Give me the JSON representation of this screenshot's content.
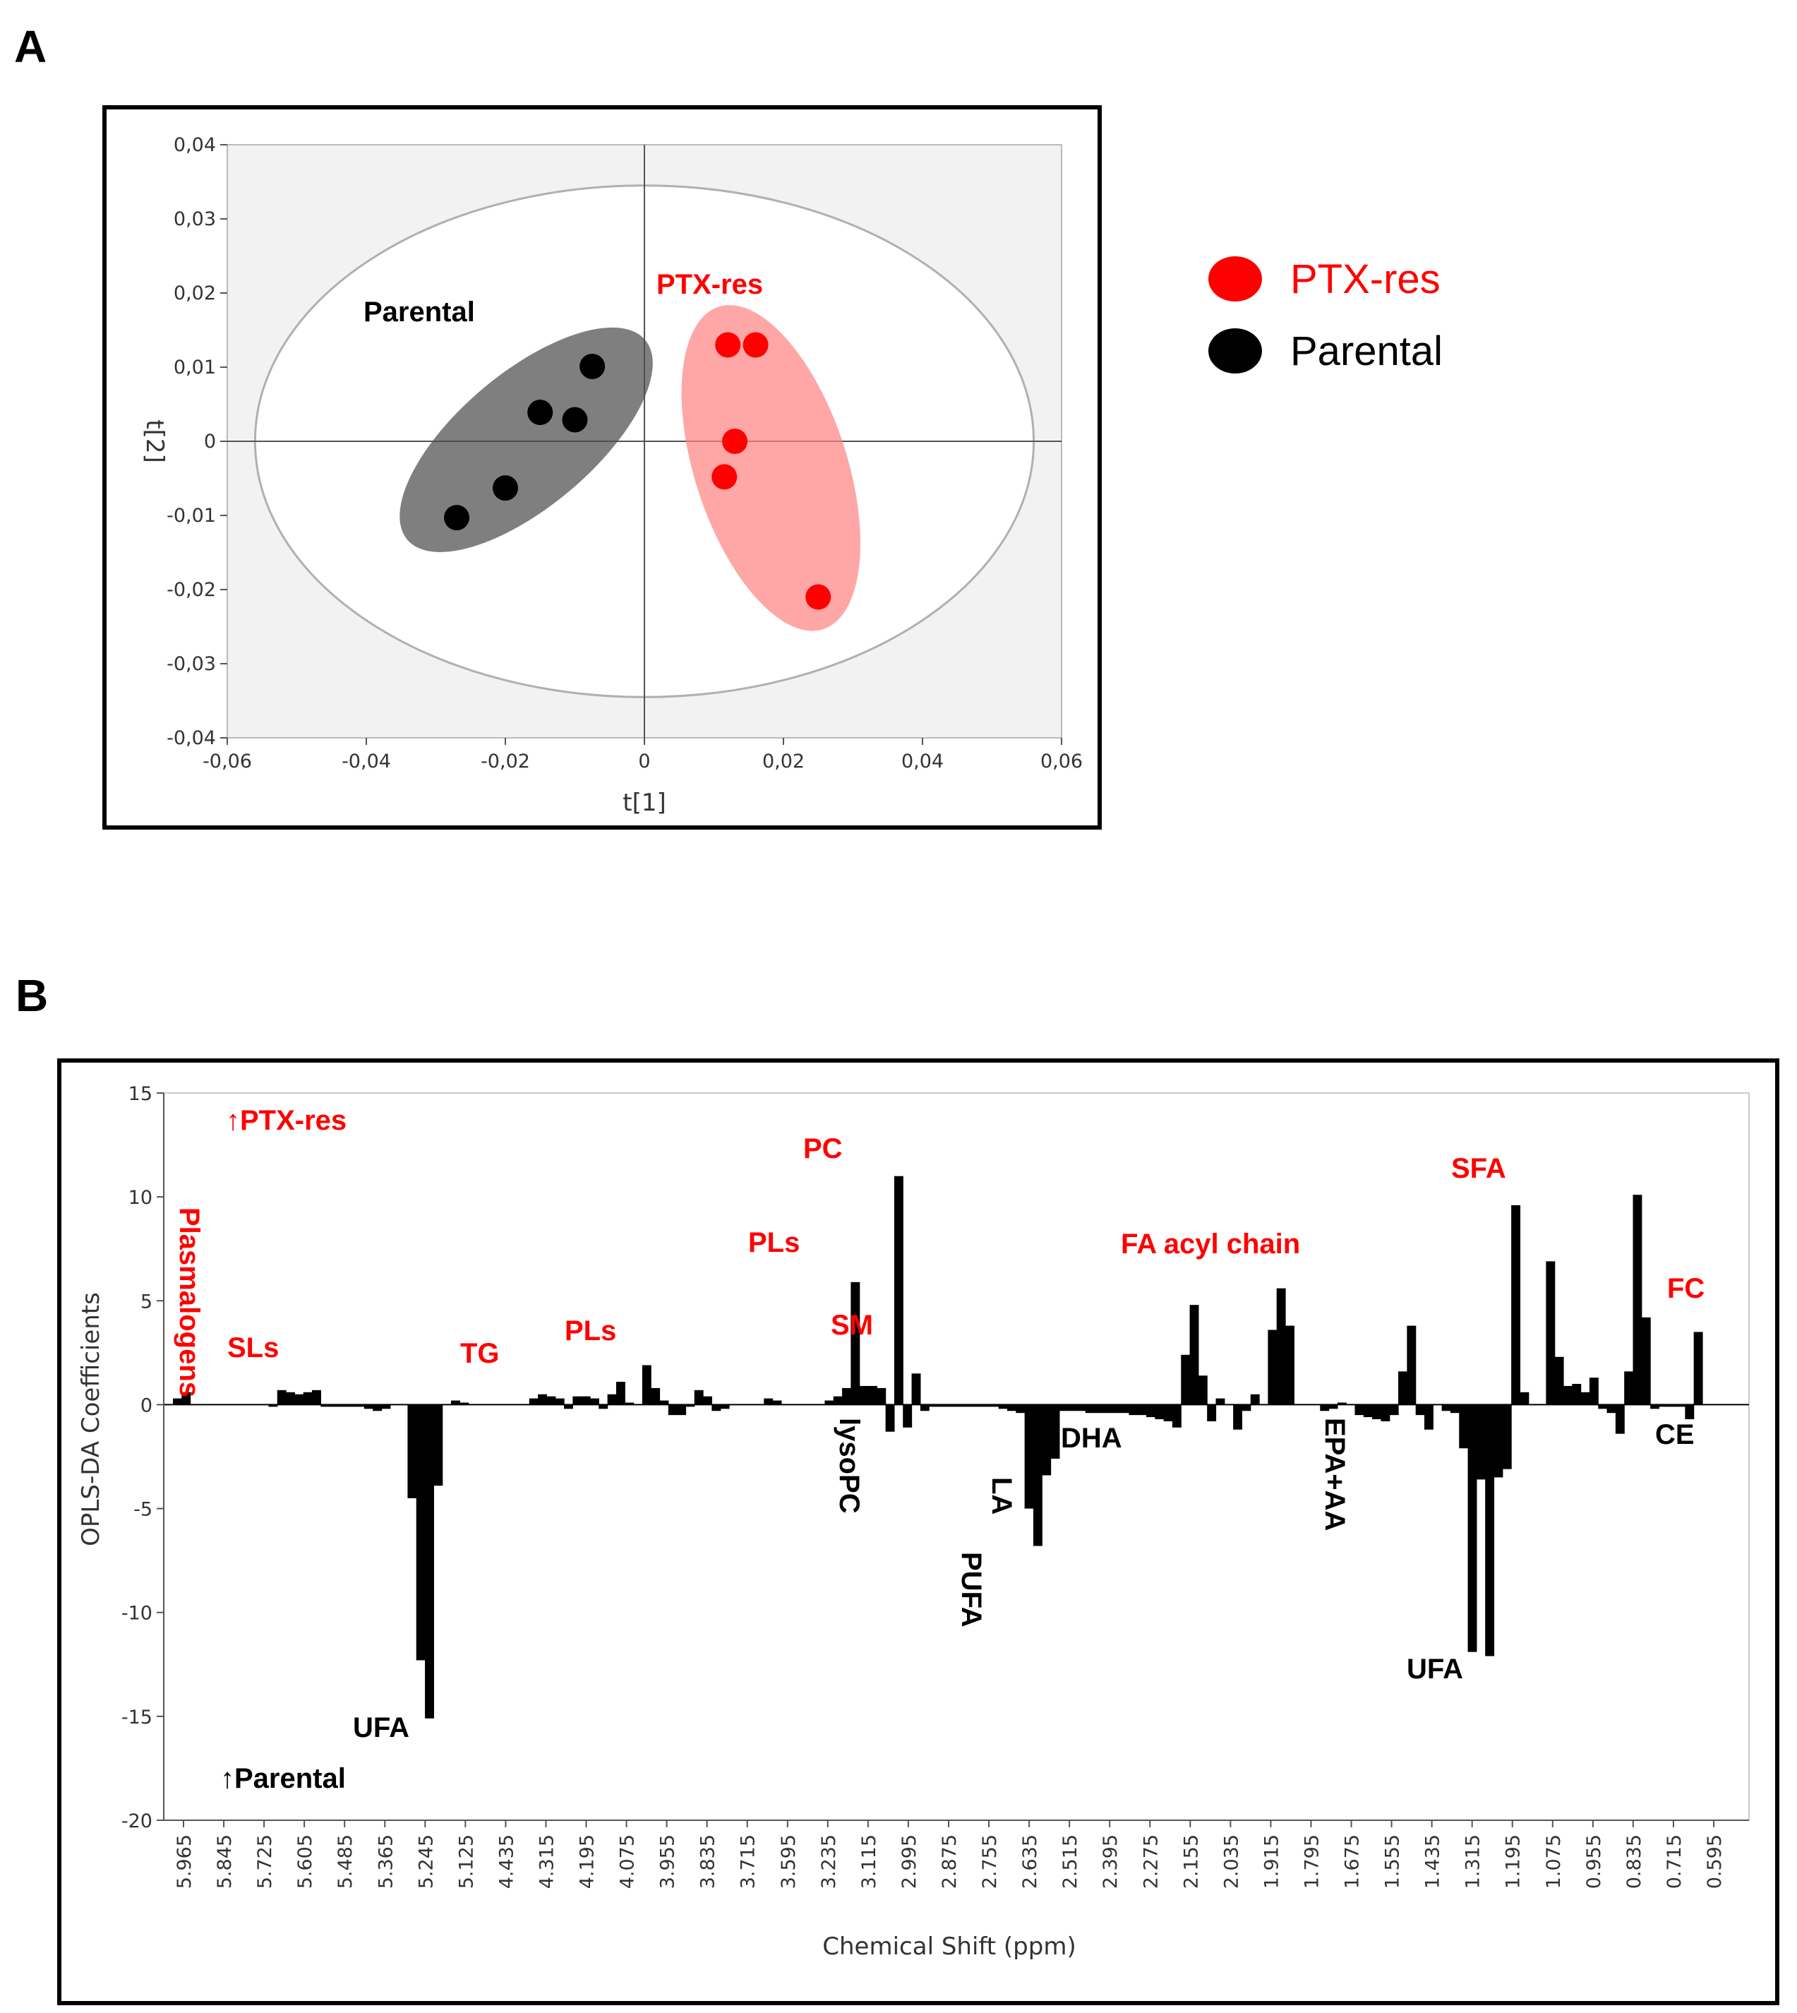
{
  "figure": {
    "panel_a_label": "A",
    "panel_b_label": "B"
  },
  "chart_data": [
    {
      "type": "scatter",
      "panel": "A",
      "xlabel": "t[1]",
      "ylabel": "t[2]",
      "xlim": [
        -0.06,
        0.06
      ],
      "ylim": [
        -0.04,
        0.04
      ],
      "xticks": [
        -0.06,
        -0.04,
        -0.02,
        0,
        0.02,
        0.04,
        0.06
      ],
      "xtick_labels": [
        "-0,06",
        "-0,04",
        "-0,02",
        "0",
        "0,02",
        "0,04",
        "0,06"
      ],
      "yticks": [
        0.04,
        0.03,
        0.02,
        0.01,
        0,
        -0.01,
        -0.02,
        -0.03,
        -0.04
      ],
      "ytick_labels": [
        "0,04",
        "0,03",
        "0,02",
        "0,01",
        "0",
        "-0,01",
        "-0,02",
        "-0,03",
        "-0,04"
      ],
      "series": [
        {
          "name": "PTX-res",
          "color": "#ff0000",
          "points": [
            [
              0.012,
              0.013
            ],
            [
              0.016,
              0.013
            ],
            [
              0.013,
              0.0
            ],
            [
              0.0115,
              -0.0048
            ],
            [
              0.025,
              -0.021
            ]
          ]
        },
        {
          "name": "Parental",
          "color": "#000000",
          "points": [
            [
              -0.0075,
              0.0101
            ],
            [
              -0.015,
              0.0039
            ],
            [
              -0.01,
              0.0029
            ],
            [
              -0.02,
              -0.0063
            ],
            [
              -0.027,
              -0.0103
            ]
          ]
        }
      ],
      "group_labels": [
        {
          "text": "Parental",
          "color": "#000000"
        },
        {
          "text": "PTX-res",
          "color": "#ff0000"
        }
      ],
      "legend": [
        {
          "label": "PTX-res",
          "color": "#ff0000"
        },
        {
          "label": "Parental",
          "color": "#000000"
        }
      ]
    },
    {
      "type": "bar",
      "panel": "B",
      "xlabel": "Chemical Shift (ppm)",
      "ylabel": "OPLS-DA Coefficients",
      "ylim": [
        -20,
        15
      ],
      "yticks": [
        15,
        10,
        5,
        0,
        -5,
        -10,
        -15,
        -20
      ],
      "ytick_labels": [
        "15",
        "10",
        "5",
        "0",
        "-5",
        "-10",
        "-15",
        "-20"
      ],
      "xtick_labels": [
        "5.965",
        "5.845",
        "5.725",
        "5.605",
        "5.485",
        "5.365",
        "5.245",
        "5.125",
        "4.435",
        "4.315",
        "4.195",
        "4.075",
        "3.955",
        "3.835",
        "3.715",
        "3.595",
        "3.235",
        "3.115",
        "2.995",
        "2.875",
        "2.755",
        "2.635",
        "2.515",
        "2.395",
        "2.275",
        "2.155",
        "2.035",
        "1.915",
        "1.795",
        "1.675",
        "1.555",
        "1.435",
        "1.315",
        "1.195",
        "1.075",
        "0.955",
        "0.835",
        "0.715",
        "0.595"
      ],
      "values": [
        0.3,
        0.6,
        0,
        0,
        0,
        0,
        0,
        0,
        0,
        0,
        0,
        -0.1,
        0.7,
        0.6,
        0.5,
        0.6,
        0.7,
        -0.1,
        -0.1,
        -0.1,
        -0.1,
        -0.1,
        -0.2,
        -0.3,
        -0.2,
        0,
        0,
        -4.5,
        -12.3,
        -15.1,
        -3.9,
        0,
        0.2,
        0.1,
        0,
        0,
        0,
        0,
        0,
        0,
        0,
        0.3,
        0.5,
        0.4,
        0.3,
        -0.2,
        0.4,
        0.4,
        0.3,
        -0.2,
        0.5,
        1.1,
        0.1,
        0,
        1.9,
        0.8,
        0.2,
        -0.5,
        -0.5,
        -0.1,
        0.7,
        0.4,
        -0.3,
        -0.2,
        0,
        0,
        0,
        0,
        0.3,
        0.2,
        0,
        0,
        0,
        0,
        0,
        0.2,
        0.4,
        0.8,
        5.9,
        0.9,
        0.9,
        0.8,
        -1.3,
        11.0,
        -1.1,
        1.5,
        -0.3,
        -0.1,
        -0.1,
        -0.1,
        -0.1,
        -0.1,
        -0.1,
        -0.1,
        -0.1,
        -0.2,
        -0.3,
        -0.4,
        -5.0,
        -6.8,
        -3.4,
        -2.6,
        -0.3,
        -0.3,
        -0.3,
        -0.4,
        -0.4,
        -0.4,
        -0.4,
        -0.4,
        -0.5,
        -0.5,
        -0.6,
        -0.7,
        -0.8,
        -1.1,
        2.4,
        4.8,
        1.4,
        -0.8,
        0.3,
        0,
        -1.2,
        -0.3,
        0.5,
        0,
        3.6,
        5.6,
        3.8,
        0,
        0,
        0,
        -0.3,
        -0.2,
        0.1,
        0,
        -0.5,
        -0.6,
        -0.7,
        -0.8,
        -0.5,
        1.6,
        3.8,
        -0.5,
        -1.2,
        0,
        -0.3,
        -0.4,
        -2.1,
        -11.9,
        -3.6,
        -12.1,
        -3.5,
        -3.1,
        9.6,
        0.6,
        0,
        0,
        6.9,
        2.3,
        0.9,
        1.0,
        0.6,
        1.3,
        -0.2,
        -0.4,
        -1.4,
        1.6,
        10.1,
        4.2,
        -0.2,
        -0.1,
        -0.1,
        -0.1,
        -0.7,
        3.5
      ],
      "annotations": [
        {
          "text": "↑PTX-res",
          "color": "#ff0000"
        },
        {
          "text": "↑Parental",
          "color": "#000000"
        },
        {
          "text": "Plasmalogens",
          "color": "#ff0000"
        },
        {
          "text": "SLs",
          "color": "#ff0000"
        },
        {
          "text": "UFA",
          "color": "#000000"
        },
        {
          "text": "TG",
          "color": "#ff0000"
        },
        {
          "text": "PLs",
          "color": "#ff0000"
        },
        {
          "text": "PLs",
          "color": "#ff0000"
        },
        {
          "text": "PC",
          "color": "#ff0000"
        },
        {
          "text": "SM",
          "color": "#ff0000"
        },
        {
          "text": "lysoPC",
          "color": "#000000"
        },
        {
          "text": "PUFA",
          "color": "#000000"
        },
        {
          "text": "LA",
          "color": "#000000"
        },
        {
          "text": "DHA",
          "color": "#000000"
        },
        {
          "text": "FA acyl chain",
          "color": "#ff0000"
        },
        {
          "text": "EPA+AA",
          "color": "#000000"
        },
        {
          "text": "UFA",
          "color": "#000000"
        },
        {
          "text": "SFA",
          "color": "#ff0000"
        },
        {
          "text": "FC",
          "color": "#ff0000"
        },
        {
          "text": "CE",
          "color": "#000000"
        }
      ]
    }
  ]
}
